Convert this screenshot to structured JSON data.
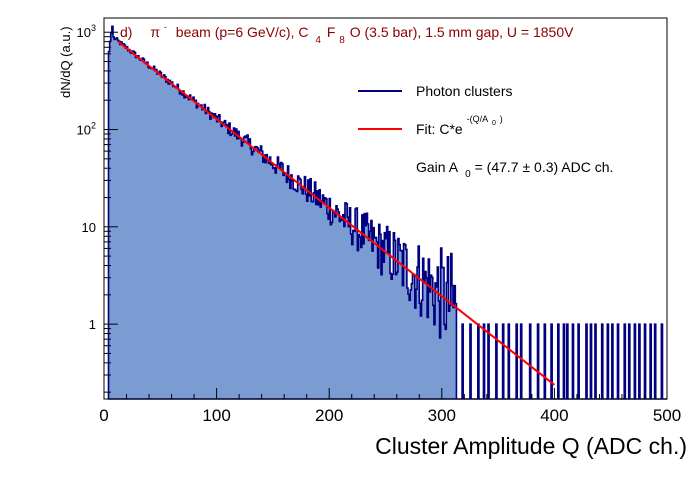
{
  "chart_data": {
    "type": "histogram",
    "title": {
      "panel": "d)",
      "particle": "π",
      "charge": "-",
      "beam": "beam (p=6 GeV/c), C",
      "c_sub": "4",
      "f": "F",
      "f_sub": "8",
      "rest": "O (3.5 bar), 1.5 mm gap, U = 1850V"
    },
    "xlabel": "Cluster Amplitude Q (ADC ch.)",
    "ylabel": "dN/dQ (a.u.)",
    "xlim": [
      0,
      500
    ],
    "ylim": [
      0.17,
      1400
    ],
    "yscale": "log",
    "x_ticks": [
      {
        "value": 0,
        "label": "0"
      },
      {
        "value": 100,
        "label": "100"
      },
      {
        "value": 200,
        "label": "200"
      },
      {
        "value": 300,
        "label": "300"
      },
      {
        "value": 400,
        "label": "400"
      },
      {
        "value": 500,
        "label": "500"
      }
    ],
    "y_ticks": [
      {
        "value": 1,
        "label": "1",
        "power": ""
      },
      {
        "value": 10,
        "label": "10",
        "power": ""
      },
      {
        "value": 100,
        "label": "10",
        "power": "2"
      },
      {
        "value": 1000,
        "label": "10",
        "power": "3"
      }
    ],
    "series": [
      {
        "name": "Photon clusters",
        "kind": "histogram",
        "color": "#000080",
        "fill": "#7b9bd3",
        "bin_width": 1,
        "x_start": 4,
        "x_end": 500,
        "decay_constant": 47.7,
        "peak": {
          "x": 7,
          "value": 1150
        },
        "sparse_ones": [
          296,
          300,
          305,
          311,
          318,
          325,
          332,
          337,
          341,
          348,
          354,
          359,
          366,
          370,
          378,
          385,
          391,
          397,
          403,
          408,
          411,
          416,
          421,
          428,
          432,
          436,
          442,
          447,
          451,
          456,
          462,
          466,
          471,
          475,
          480,
          485,
          489,
          495
        ]
      },
      {
        "name": "Fit",
        "kind": "exponential",
        "color": "#ff0000",
        "C": 810,
        "A0": 47.7,
        "x_start": 12,
        "x_end": 400
      }
    ],
    "legend": {
      "position": "top-right",
      "entries": [
        {
          "label": "Photon clusters",
          "color": "#000080"
        },
        {
          "label": "Fit: C*e",
          "color": "#ff0000",
          "exponent": "-(Q/A",
          "exponent_sub": "0",
          "exponent_close": ")"
        }
      ],
      "gain_text": {
        "prefix": "Gain A",
        "sub": "0",
        "suffix": " = (47.7 ± 0.3) ADC ch."
      }
    }
  }
}
